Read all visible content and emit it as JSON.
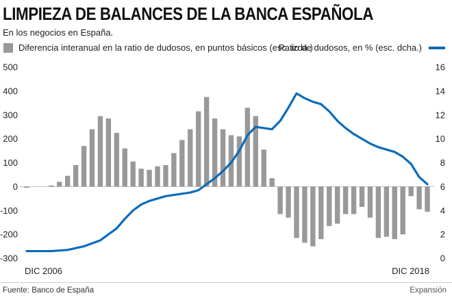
{
  "title": "LIMPIEZA DE BALANCES DE LA BANCA ESPAÑOLA",
  "subtitle": "En los negocios en España.",
  "legend": {
    "bars": "Diferencia interanual en la ratio de dudosos, en puntos básicos (esc. izda.)",
    "line": "Ratio de dudosos, en % (esc. dcha.)"
  },
  "colors": {
    "bars": "#999999",
    "line": "#0a6bb8"
  },
  "footer": {
    "source": "Fuente: Banco de España",
    "credit": "Expansión"
  },
  "chart_data": {
    "type": "bar",
    "x_start_label": "DIC 2006",
    "x_end_label": "DIC 2018",
    "left_axis": {
      "ylim": [
        -300,
        500
      ],
      "ticks": [
        -300,
        -200,
        -100,
        0,
        100,
        200,
        300,
        400,
        500
      ]
    },
    "right_axis": {
      "ylim": [
        0,
        16
      ],
      "ticks": [
        0,
        2,
        4,
        6,
        8,
        10,
        12,
        14,
        16
      ]
    },
    "bars": {
      "axis": "left",
      "values": [
        -5,
        null,
        null,
        5,
        20,
        45,
        90,
        170,
        240,
        295,
        285,
        225,
        160,
        105,
        75,
        70,
        85,
        90,
        140,
        195,
        240,
        315,
        375,
        285,
        240,
        215,
        210,
        330,
        295,
        155,
        35,
        -115,
        -130,
        -215,
        -235,
        -250,
        -220,
        -165,
        -155,
        -115,
        -115,
        -85,
        -130,
        -215,
        -210,
        -220,
        -200,
        -40,
        -95,
        -105
      ]
    },
    "line": {
      "axis": "right",
      "x": [
        0,
        3,
        5,
        7,
        9,
        11,
        12,
        13,
        14,
        15,
        16,
        17,
        18,
        19,
        20,
        21,
        22,
        23,
        24,
        25,
        26,
        27,
        28,
        29,
        30,
        31,
        32,
        33,
        34,
        35,
        36,
        37,
        38,
        39,
        40,
        41,
        42,
        43,
        44,
        45,
        46,
        47,
        48,
        49
      ],
      "values": [
        0.6,
        0.6,
        0.7,
        1.0,
        1.5,
        2.5,
        3.3,
        4.0,
        4.5,
        4.8,
        5.0,
        5.2,
        5.3,
        5.4,
        5.5,
        5.7,
        6.2,
        6.7,
        7.3,
        8.0,
        9.0,
        10.3,
        11.0,
        10.9,
        10.8,
        11.5,
        12.6,
        13.8,
        13.4,
        13.1,
        12.9,
        12.3,
        11.5,
        10.9,
        10.4,
        10.0,
        9.6,
        9.3,
        9.1,
        8.9,
        8.5,
        7.9,
        6.8,
        6.2
      ]
    }
  }
}
